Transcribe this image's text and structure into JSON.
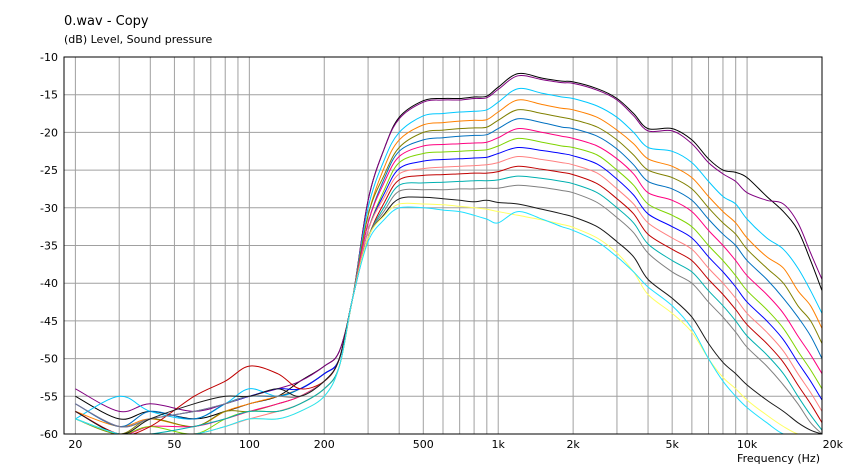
{
  "chart_data": {
    "type": "line",
    "title": "0.wav - Copy",
    "ylabel": "(dB)  Level, Sound pressure",
    "xlabel": "Frequency  (Hz)",
    "xscale": "log",
    "xlim": [
      18,
      20000
    ],
    "ylim": [
      -60,
      -10
    ],
    "grid": true,
    "y_ticks": [
      -10,
      -15,
      -20,
      -25,
      -30,
      -35,
      -40,
      -45,
      -50,
      -55,
      -60
    ],
    "y_tick_labels": [
      "-10",
      "-15",
      "-20",
      "-25",
      "-30",
      "-35",
      "-40",
      "-45",
      "-50",
      "-55",
      "-60"
    ],
    "x_ticks": [
      20,
      50,
      100,
      200,
      500,
      1000,
      2000,
      5000,
      10000,
      20000
    ],
    "x_tick_labels": [
      "20",
      "50",
      "100",
      "200",
      "500",
      "1k",
      "2k",
      "5k",
      "10k",
      "20k"
    ],
    "freqs": [
      20,
      30,
      40,
      60,
      80,
      100,
      130,
      160,
      200,
      230,
      260,
      300,
      350,
      400,
      500,
      600,
      700,
      800,
      900,
      1000,
      1200,
      1500,
      1800,
      2000,
      2500,
      3000,
      3500,
      4000,
      5000,
      6000,
      7000,
      8000,
      9000,
      10000,
      12000,
      14000,
      16000,
      18000,
      20000
    ],
    "series": [
      {
        "color": "#000000",
        "values": [
          -55,
          -58,
          -57,
          -58,
          -57,
          -56,
          -55,
          -53,
          -51,
          -49,
          -42,
          -29,
          -22,
          -18,
          -15.8,
          -15.5,
          -15.5,
          -15.3,
          -15.2,
          -14,
          -12.2,
          -12.8,
          -13.2,
          -13.3,
          -14.2,
          -15.5,
          -17.5,
          -19.5,
          -19.5,
          -21,
          -23.5,
          -25,
          -25.3,
          -26,
          -28.5,
          -30.5,
          -33,
          -37,
          -41
        ]
      },
      {
        "color": "#800080",
        "values": [
          -54,
          -57,
          -56,
          -57,
          -56,
          -55,
          -54,
          -53,
          -51,
          -49,
          -42,
          -29,
          -22,
          -18.2,
          -16,
          -15.7,
          -15.7,
          -15.5,
          -15.4,
          -14.3,
          -12.5,
          -13,
          -13.4,
          -13.5,
          -14.4,
          -15.7,
          -17.8,
          -19.8,
          -19.8,
          -21.5,
          -24,
          -25.5,
          -26.5,
          -28,
          -29,
          -29.5,
          -32,
          -36,
          -39.5
        ]
      },
      {
        "color": "#00c8ff",
        "values": [
          -58,
          -55,
          -57,
          -58,
          -56,
          -54,
          -55,
          -54,
          -52,
          -50,
          -42,
          -30,
          -23.5,
          -20,
          -17.8,
          -17.5,
          -17.3,
          -17.2,
          -17,
          -16,
          -14.2,
          -14.8,
          -15.3,
          -15.5,
          -16.5,
          -18,
          -20,
          -22,
          -22.5,
          -24,
          -26.5,
          -28.5,
          -29.5,
          -31.5,
          -34,
          -35.5,
          -38,
          -41,
          -44
        ]
      },
      {
        "color": "#ff8000",
        "values": [
          -57,
          -59,
          -58,
          -59,
          -57,
          -56,
          -55,
          -54,
          -52,
          -50,
          -42,
          -31,
          -24.5,
          -21,
          -19,
          -18.7,
          -18.5,
          -18.4,
          -18.3,
          -17.3,
          -15.7,
          -16.3,
          -16.8,
          -17,
          -18,
          -19.7,
          -21.5,
          -23.5,
          -24.5,
          -26,
          -28.5,
          -30.5,
          -32,
          -34,
          -36.5,
          -38,
          -41,
          -43,
          -46
        ]
      },
      {
        "color": "#808000",
        "values": [
          -58,
          -60,
          -58,
          -59,
          -57,
          -57,
          -56,
          -55,
          -53,
          -50,
          -42,
          -31,
          -25.5,
          -22,
          -20,
          -19.7,
          -19.5,
          -19.4,
          -19.3,
          -18.4,
          -17,
          -17.5,
          -18,
          -18.3,
          -19.3,
          -21,
          -23,
          -25,
          -26,
          -27.5,
          -30,
          -32,
          -33.5,
          -35.5,
          -38,
          -40,
          -43,
          -45,
          -48
        ]
      },
      {
        "color": "#0070c0",
        "values": [
          -56,
          -59,
          -57,
          -58,
          -56,
          -55,
          -55,
          -54,
          -52,
          -50,
          -42,
          -32,
          -26,
          -22.5,
          -21,
          -20.7,
          -20.5,
          -20.4,
          -20.3,
          -19.5,
          -18.2,
          -18.7,
          -19.3,
          -19.5,
          -20.5,
          -22.2,
          -24.3,
          -26.5,
          -27.5,
          -29,
          -31.5,
          -33.5,
          -35,
          -37,
          -39.5,
          -42,
          -44.5,
          -47,
          -50
        ]
      },
      {
        "color": "#ff0080",
        "values": [
          -57,
          -60,
          -59,
          -59,
          -58,
          -57,
          -56,
          -55,
          -53,
          -50,
          -42,
          -32,
          -26.5,
          -23.2,
          -21.8,
          -21.6,
          -21.5,
          -21.4,
          -21.3,
          -20.7,
          -19.5,
          -20,
          -20.5,
          -20.8,
          -21.8,
          -23.5,
          -25.5,
          -28,
          -29,
          -30.5,
          -33,
          -35,
          -37,
          -39,
          -41.5,
          -44,
          -47,
          -49.5,
          -52
        ]
      },
      {
        "color": "#7fd400",
        "values": [
          -58,
          -60,
          -59,
          -60,
          -58,
          -57,
          -57,
          -56,
          -54,
          -51,
          -42,
          -33,
          -27.5,
          -24,
          -22.8,
          -22.6,
          -22.5,
          -22.4,
          -22.3,
          -21.8,
          -20.8,
          -21.3,
          -21.8,
          -22,
          -23,
          -25,
          -27,
          -29.5,
          -31,
          -32.5,
          -35,
          -37,
          -39,
          -41,
          -43.5,
          -46,
          -49,
          -51.5,
          -54
        ]
      },
      {
        "color": "#0000ff",
        "values": [
          -56,
          -59,
          -58,
          -57,
          -56,
          -55,
          -54,
          -54,
          -52,
          -50,
          -42,
          -33,
          -28,
          -24.8,
          -23.8,
          -23.6,
          -23.5,
          -23.4,
          -23.3,
          -22.8,
          -22,
          -22.4,
          -22.8,
          -23.1,
          -24.2,
          -26.2,
          -28.3,
          -30.8,
          -32.5,
          -34,
          -36.5,
          -38.5,
          -40.5,
          -42.5,
          -45,
          -47.5,
          -50.5,
          -53,
          -55.5
        ]
      },
      {
        "color": "#ff8080",
        "values": [
          -58,
          -60,
          -60,
          -60,
          -59,
          -58,
          -57,
          -56,
          -54,
          -51,
          -42,
          -33,
          -28.5,
          -25.5,
          -24.8,
          -24.6,
          -24.5,
          -24.4,
          -24.3,
          -24,
          -23.2,
          -23.6,
          -24,
          -24.3,
          -25.4,
          -27.5,
          -29.5,
          -32,
          -34,
          -35.5,
          -38,
          -40,
          -42,
          -44,
          -46.5,
          -49,
          -52,
          -54.5,
          -57
        ]
      },
      {
        "color": "#c00000",
        "values": [
          -57,
          -60,
          -59,
          -55,
          -53,
          -51,
          -52,
          -54,
          -53,
          -50,
          -42,
          -34,
          -29.2,
          -26.3,
          -25.7,
          -25.6,
          -25.5,
          -25.4,
          -25.4,
          -25.2,
          -24.5,
          -24.9,
          -25.3,
          -25.6,
          -26.8,
          -28.8,
          -30.8,
          -33.5,
          -35.5,
          -37,
          -39.5,
          -41.5,
          -43.5,
          -45.5,
          -48,
          -50.5,
          -53.5,
          -56,
          -58.5
        ]
      },
      {
        "color": "#00b0b0",
        "values": [
          -58,
          -60,
          -60,
          -59,
          -58,
          -57,
          -57,
          -56,
          -54,
          -51,
          -42,
          -34,
          -29.8,
          -27,
          -26.7,
          -26.6,
          -26.5,
          -26.4,
          -26.4,
          -26.3,
          -25.8,
          -26.1,
          -26.5,
          -26.8,
          -28,
          -30,
          -32,
          -34.8,
          -37,
          -38.5,
          -41,
          -43,
          -45,
          -47,
          -49.5,
          -52,
          -55,
          -57.5,
          -59.5
        ]
      },
      {
        "color": "#808080",
        "values": [
          -56,
          -59,
          -58,
          -57,
          -56,
          -55,
          -55,
          -55,
          -53,
          -50,
          -42,
          -34,
          -30.3,
          -27.8,
          -27.6,
          -27.6,
          -27.5,
          -27.5,
          -27.4,
          -27.4,
          -27,
          -27.3,
          -27.7,
          -28,
          -29.3,
          -31.3,
          -33.3,
          -36,
          -38.5,
          -40,
          -42.5,
          -44.5,
          -46.5,
          -48.5,
          -51,
          -53.5,
          -56,
          -58.5,
          -60
        ]
      },
      {
        "color": "#1a1a1a",
        "values": [
          -57,
          -60,
          -58,
          -56,
          -55,
          -55,
          -54,
          -55,
          -53,
          -50,
          -42,
          -34,
          -30.8,
          -28.8,
          -28.6,
          -28.8,
          -29,
          -29.2,
          -29,
          -29.3,
          -29.5,
          -30.2,
          -30.8,
          -31.2,
          -32.5,
          -34.5,
          -36.5,
          -39.5,
          -42,
          -44.5,
          -48,
          -50.5,
          -52,
          -53.5,
          -55.5,
          -57,
          -58.5,
          -59.5,
          -60
        ]
      },
      {
        "color": "#ffff60",
        "values": [
          -58,
          -60,
          -60,
          -60,
          -59,
          -58,
          -58,
          -57,
          -55,
          -51,
          -42,
          -34,
          -31,
          -29.5,
          -29.5,
          -29.6,
          -29.8,
          -30,
          -30.2,
          -30.5,
          -31,
          -31.6,
          -32.2,
          -32.6,
          -34,
          -36,
          -38.5,
          -41.5,
          -44,
          -46.5,
          -50,
          -52.5,
          -54,
          -55.5,
          -57.5,
          -59,
          -60,
          -60,
          -60
        ]
      },
      {
        "color": "#20e0ff",
        "values": [
          -58,
          -60,
          -60,
          -60,
          -59,
          -58,
          -58,
          -57,
          -55,
          -51,
          -42,
          -34.5,
          -31.5,
          -30,
          -30,
          -30.3,
          -30.5,
          -31,
          -31.5,
          -32,
          -30.5,
          -31.5,
          -32.5,
          -33,
          -34.5,
          -36.5,
          -38.5,
          -40.5,
          -43,
          -46,
          -50,
          -53,
          -55,
          -56.5,
          -58.5,
          -60,
          -60,
          -60,
          -60
        ]
      }
    ]
  }
}
